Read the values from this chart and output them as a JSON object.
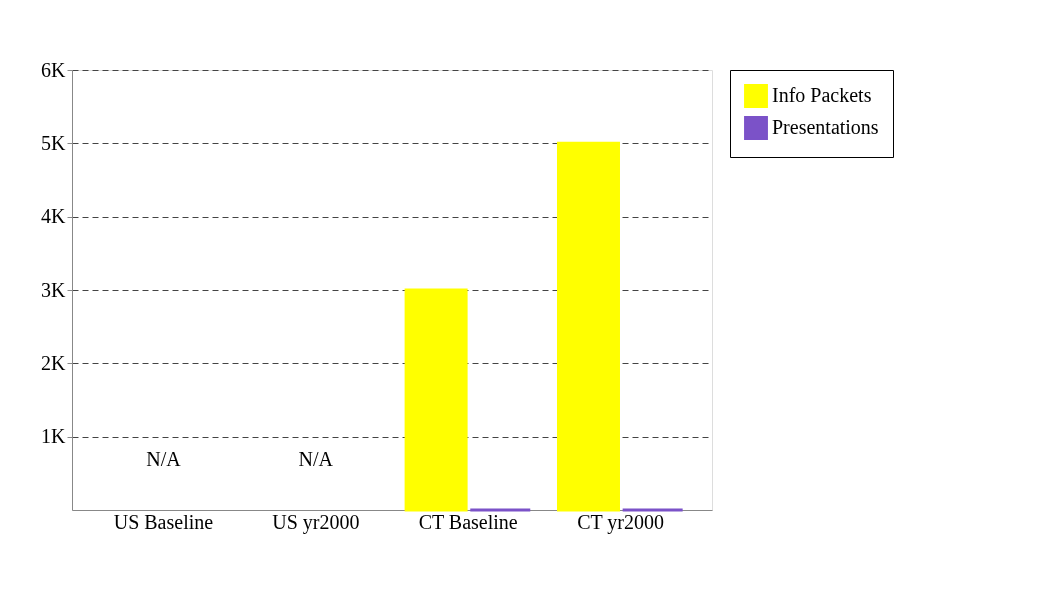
{
  "chart_data": {
    "type": "bar",
    "categories": [
      "US Baseline",
      "US yr2000",
      "CT Baseline",
      "CT yr2000"
    ],
    "series": [
      {
        "name": "Info Packets",
        "color": "#ffff00",
        "values": [
          null,
          null,
          3000,
          5000
        ]
      },
      {
        "name": "Presentations",
        "color": "#7b52c8",
        "values": [
          null,
          null,
          0,
          0
        ]
      }
    ],
    "ylim": [
      0,
      6000
    ],
    "yticks": [
      {
        "value": 1000,
        "label": "1K"
      },
      {
        "value": 2000,
        "label": "2K"
      },
      {
        "value": 3000,
        "label": "3K"
      },
      {
        "value": 4000,
        "label": "4K"
      },
      {
        "value": 5000,
        "label": "5K"
      },
      {
        "value": 6000,
        "label": "6K"
      }
    ],
    "grid": "y",
    "legend": "right",
    "annotations": [
      "N/A",
      "N/A"
    ]
  }
}
